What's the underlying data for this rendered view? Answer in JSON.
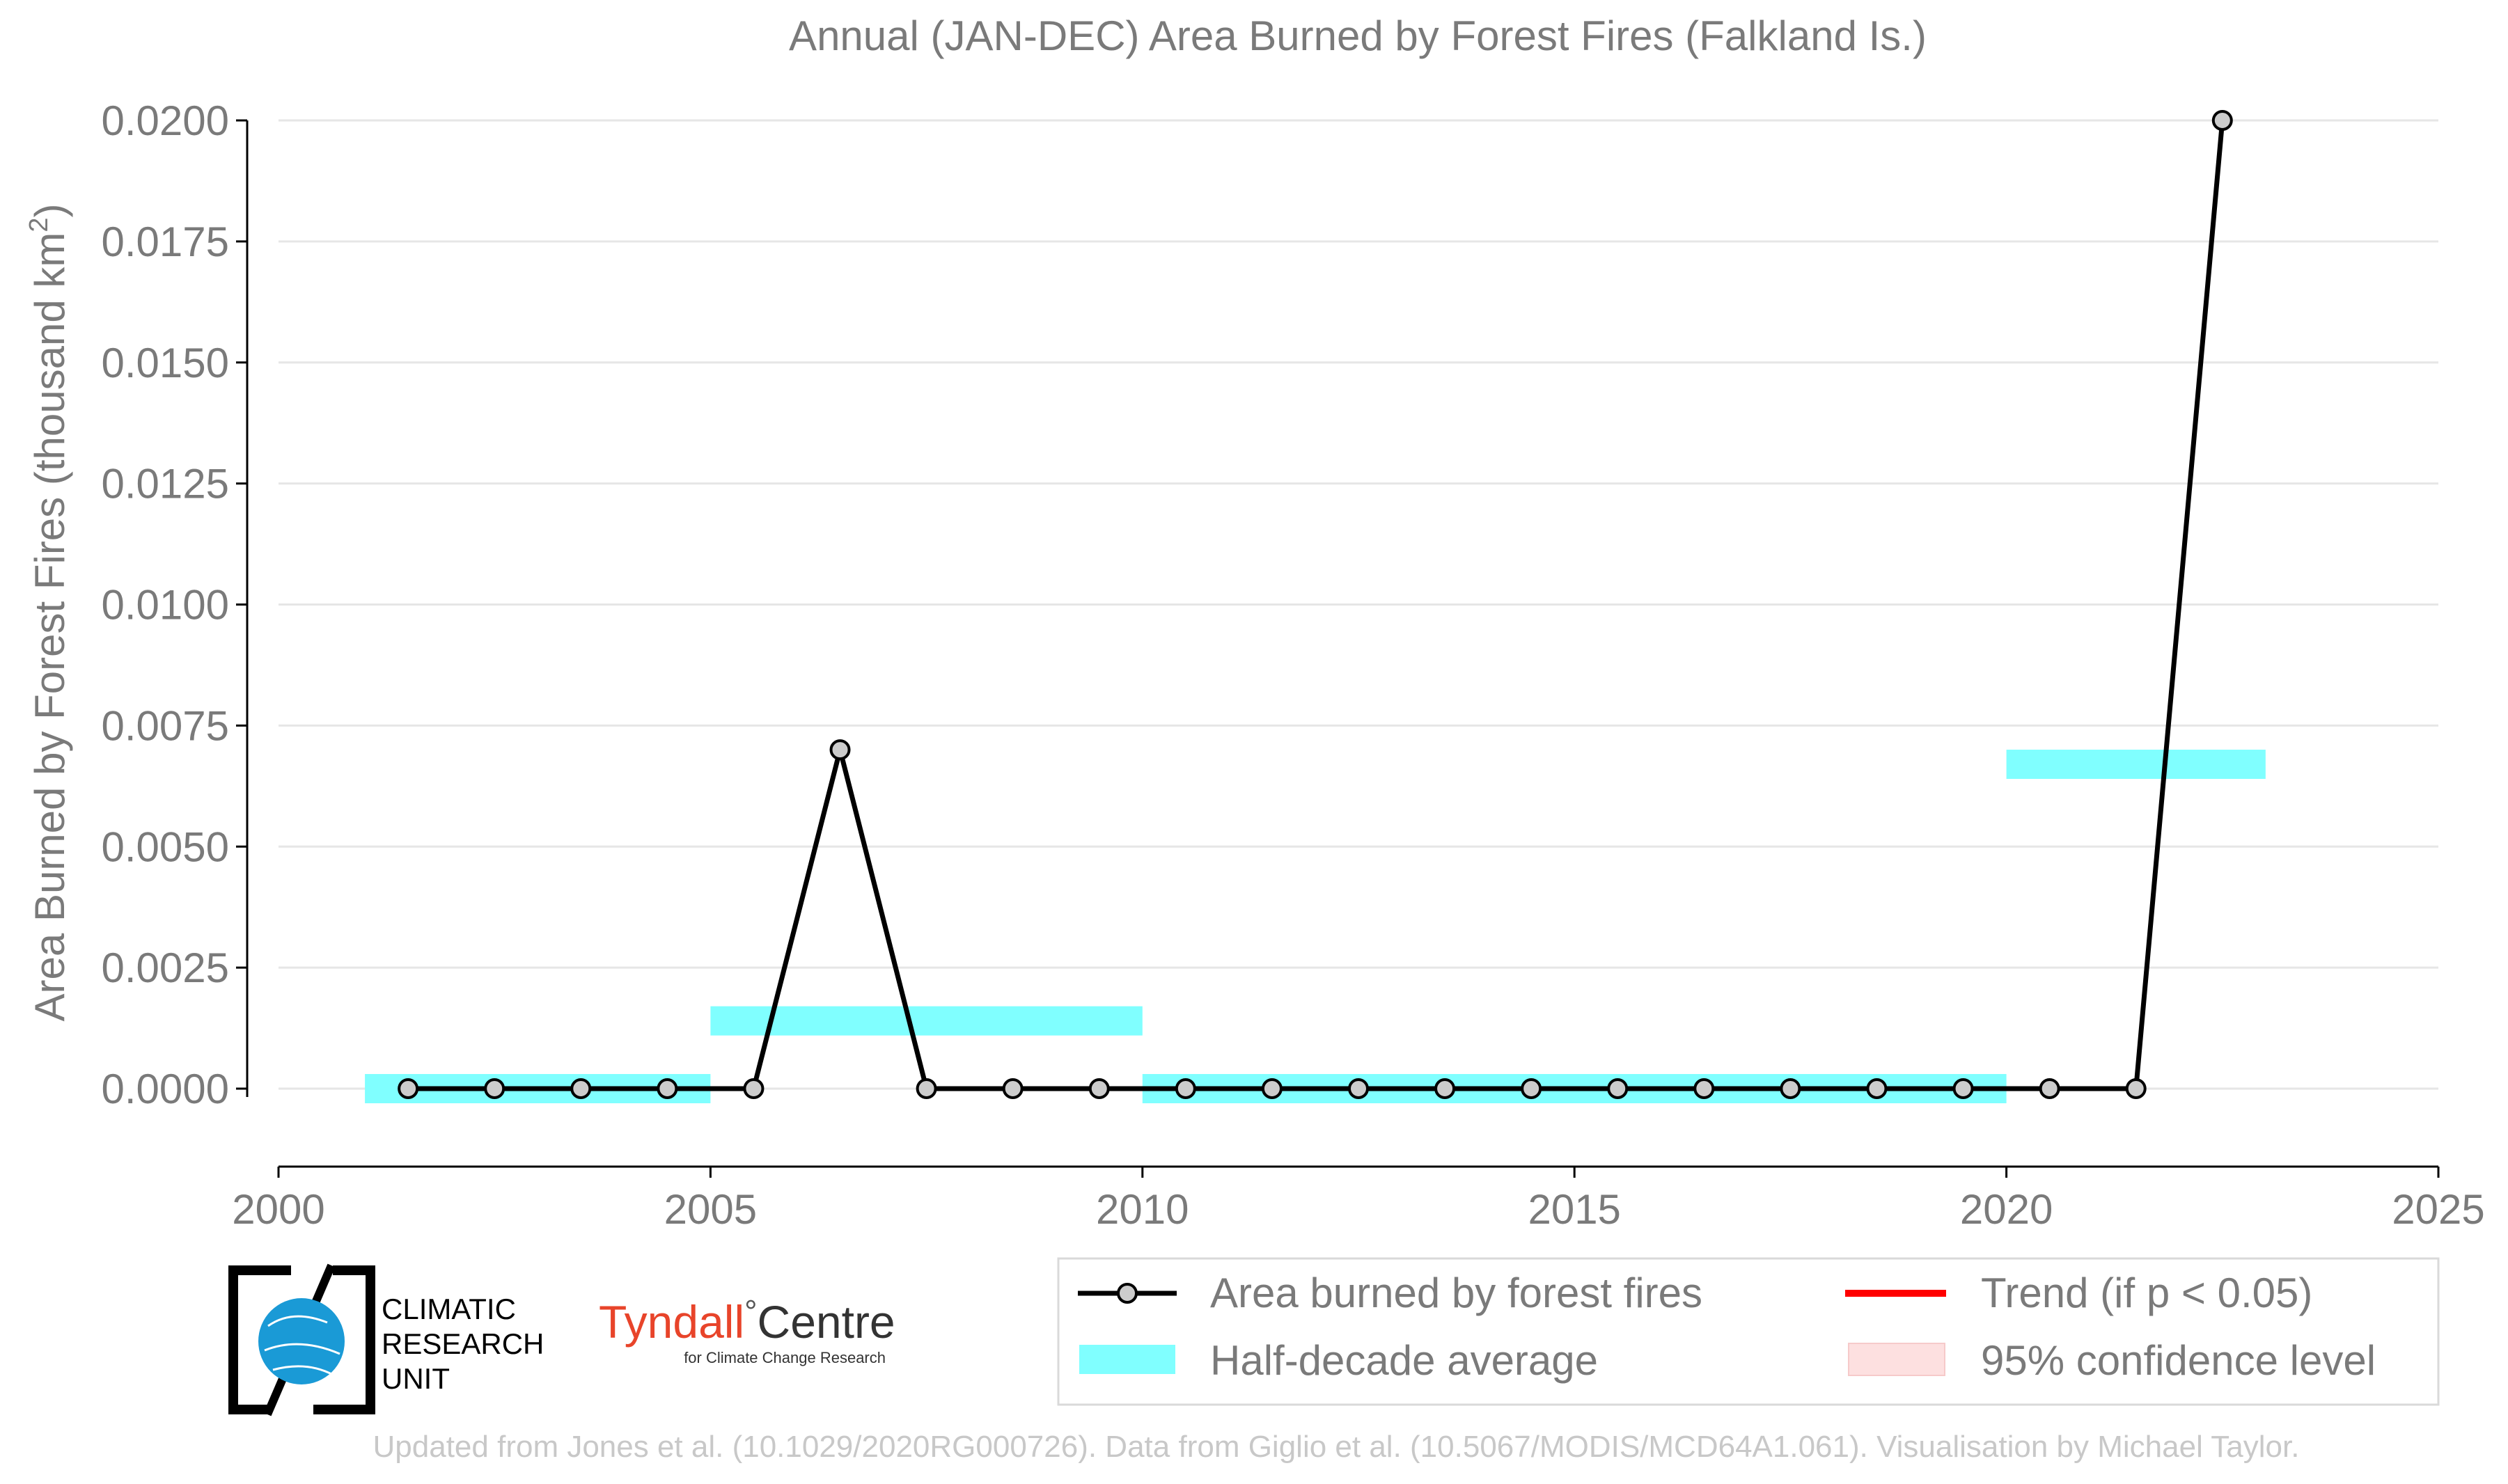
{
  "chart_data": {
    "type": "line",
    "title": "Annual (JAN-DEC) Area Burned by Forest Fires (Falkland Is.)",
    "xlabel": "",
    "ylabel": "Area Burned by Forest Fires (thousand km",
    "ylabel_sup": "2",
    "ylabel_close": ")",
    "xlim": [
      2000,
      2025
    ],
    "ylim": [
      -0.0016,
      0.02
    ],
    "grid": true,
    "x_ticks": [
      2000,
      2005,
      2010,
      2015,
      2020,
      2025
    ],
    "y_ticks": [
      0.0,
      0.0025,
      0.005,
      0.0075,
      0.01,
      0.0125,
      0.015,
      0.0175,
      0.02
    ],
    "y_tick_labels": [
      "0.0000",
      "0.0025",
      "0.0050",
      "0.0075",
      "0.0100",
      "0.0125",
      "0.0150",
      "0.0175",
      "0.0200"
    ],
    "series": [
      {
        "name": "Area burned by forest fires",
        "color": "#000000",
        "marker_color": "#cccccc",
        "x": [
          2001.5,
          2002.5,
          2003.5,
          2004.5,
          2005.5,
          2006.5,
          2007.5,
          2008.5,
          2009.5,
          2010.5,
          2011.5,
          2012.5,
          2013.5,
          2014.5,
          2015.5,
          2016.5,
          2017.5,
          2018.5,
          2019.5,
          2020.5,
          2021.5,
          2022.5
        ],
        "values": [
          0,
          0,
          0,
          0,
          0,
          0.007,
          0,
          0,
          0,
          0,
          0,
          0,
          0,
          0,
          0,
          0,
          0,
          0,
          0,
          0,
          0,
          0.02
        ]
      }
    ],
    "half_decade_average": {
      "name": "Half-decade average",
      "color": "#80ffff",
      "segments": [
        {
          "x_start": 2001,
          "x_end": 2005,
          "value": 0.0
        },
        {
          "x_start": 2005,
          "x_end": 2010,
          "value": 0.0014
        },
        {
          "x_start": 2010,
          "x_end": 2020,
          "value": 0.0
        },
        {
          "x_start": 2020,
          "x_end": 2023,
          "value": 0.0067
        }
      ]
    },
    "legend": {
      "placement": "bottom-right",
      "items": [
        {
          "label": "Area burned by forest fires",
          "kind": "line-marker",
          "color": "#000000"
        },
        {
          "label": "Trend (if p < 0.05)",
          "kind": "line",
          "color": "#ff0000"
        },
        {
          "label": "Half-decade average",
          "kind": "band",
          "color": "#80ffff"
        },
        {
          "label": "95% confidence level",
          "kind": "band",
          "color": "#fde0e0"
        }
      ]
    }
  },
  "logos": {
    "cru_line1": "CLIMATIC",
    "cru_line2": "RESEARCH",
    "cru_line3": "UNIT",
    "tyndall_name": "Tyndall",
    "tyndall_degree": "°",
    "tyndall_centre": "Centre",
    "tyndall_sub": "for Climate Change Research"
  },
  "footer": {
    "credit": "Updated from Jones et al. (10.1029/2020RG000726). Data from Giglio et al. (10.5067/MODIS/MCD64A1.061). Visualisation by Michael Taylor."
  },
  "colors": {
    "text_gray": "#7a7a7a",
    "footer_gray": "#c8c8c8",
    "grid": "#e6e6e6",
    "tyndall_red": "#e8442a",
    "cru_blue": "#1a9ad6"
  }
}
